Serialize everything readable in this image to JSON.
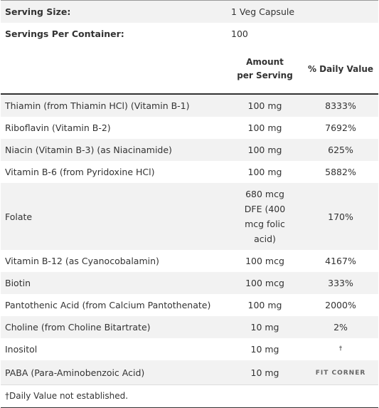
{
  "serving": {
    "rows": [
      {
        "label": "Serving Size:",
        "value": "1 Veg Capsule"
      },
      {
        "label": "Servings Per Container:",
        "value": "100"
      }
    ]
  },
  "table": {
    "headers": [
      "Amount per Serving",
      "% Daily Value"
    ],
    "rows": [
      [
        "Thiamin (from Thiamin HCl) (Vitamin B-1)",
        "100 mg",
        "8333%"
      ],
      [
        "Riboflavin (Vitamin B-2)",
        "100 mg",
        "7692%"
      ],
      [
        "Niacin (Vitamin B-3) (as Niacinamide)",
        "100 mg",
        "625%"
      ],
      [
        "Vitamin B-6 (from Pyridoxine HCl)",
        "100 mg",
        "5882%"
      ],
      [
        "Folate",
        "680 mcg DFE (400 mcg folic acid)",
        "170%"
      ],
      [
        "Vitamin B-12 (as Cyanocobalamin)",
        "100 mcg",
        "4167%"
      ],
      [
        "Biotin",
        "100 mcg",
        "333%"
      ],
      [
        "Pantothenic Acid (from Calcium Pantothenate)",
        "100 mg",
        "2000%"
      ],
      [
        "Choline (from Choline Bitartrate)",
        "10 mg",
        "2%"
      ],
      [
        "Inositol",
        "10 mg",
        "†"
      ],
      [
        "PABA (Para-Aminobenzoic Acid)",
        "10 mg"
      ]
    ]
  },
  "footnote": "†Daily Value not established.",
  "watermark": "FIT CORNER"
}
